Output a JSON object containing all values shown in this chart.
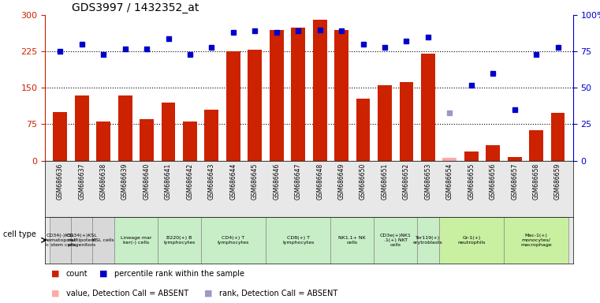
{
  "title": "GDS3997 / 1432352_at",
  "samples": [
    "GSM686636",
    "GSM686637",
    "GSM686638",
    "GSM686639",
    "GSM686640",
    "GSM686641",
    "GSM686642",
    "GSM686643",
    "GSM686644",
    "GSM686645",
    "GSM686646",
    "GSM686647",
    "GSM686648",
    "GSM686649",
    "GSM686650",
    "GSM686651",
    "GSM686652",
    "GSM686653",
    "GSM686654",
    "GSM686655",
    "GSM686656",
    "GSM686657",
    "GSM686658",
    "GSM686659"
  ],
  "counts": [
    100,
    135,
    80,
    135,
    85,
    120,
    80,
    105,
    225,
    228,
    270,
    275,
    290,
    270,
    128,
    155,
    162,
    220,
    5,
    18,
    32,
    8,
    62,
    98
  ],
  "percentile_ranks": [
    75,
    80,
    73,
    77,
    77,
    84,
    73,
    78,
    88,
    89,
    88,
    89,
    90,
    89,
    80,
    78,
    82,
    85,
    33,
    52,
    60,
    35,
    73,
    78
  ],
  "absent_value_indices": [
    18
  ],
  "absent_rank_indices": [
    18
  ],
  "cell_type_groups": [
    {
      "label": "CD34(-)KSL\nhematopoiet\nic stem cells",
      "start": 0,
      "end": 0,
      "color": "#d8d8d8"
    },
    {
      "label": "CD34(+)KSL\nmultipotent\nprogenitors",
      "start": 1,
      "end": 1,
      "color": "#d8d8d8"
    },
    {
      "label": "KSL cells",
      "start": 2,
      "end": 2,
      "color": "#d8d8d8"
    },
    {
      "label": "Lineage mar\nker(-) cells",
      "start": 3,
      "end": 4,
      "color": "#c8eec8"
    },
    {
      "label": "B220(+) B\nlymphocytes",
      "start": 5,
      "end": 6,
      "color": "#c8eec8"
    },
    {
      "label": "CD4(+) T\nlymphocytes",
      "start": 7,
      "end": 9,
      "color": "#c8eec8"
    },
    {
      "label": "CD8(+) T\nlymphocytes",
      "start": 10,
      "end": 12,
      "color": "#c8eec8"
    },
    {
      "label": "NK1.1+ NK\ncells",
      "start": 13,
      "end": 14,
      "color": "#c8eec8"
    },
    {
      "label": "CD3e(+)NK1\n.1(+) NKT\ncells",
      "start": 15,
      "end": 16,
      "color": "#c8eec8"
    },
    {
      "label": "Ter119(+)\nerytroblasts",
      "start": 17,
      "end": 17,
      "color": "#c8eec8"
    },
    {
      "label": "Gr-1(+)\nneutrophils",
      "start": 18,
      "end": 20,
      "color": "#c8f0a0"
    },
    {
      "label": "Mac-1(+)\nmonocytes/\nmacrophage",
      "start": 21,
      "end": 23,
      "color": "#c8f0a0"
    }
  ],
  "ylim_left": [
    0,
    300
  ],
  "ylim_right": [
    0,
    100
  ],
  "yticks_left": [
    0,
    75,
    150,
    225,
    300
  ],
  "yticks_right": [
    0,
    25,
    50,
    75,
    100
  ],
  "bar_color": "#cc2200",
  "bar_color_absent": "#ffaaaa",
  "dot_color": "#0000cc",
  "dot_color_absent": "#9999cc",
  "bg_color": "#ffffff",
  "hgrid_color": "#000000",
  "tick_label_color_left": "#cc2200",
  "tick_label_color_right": "#0000cc"
}
